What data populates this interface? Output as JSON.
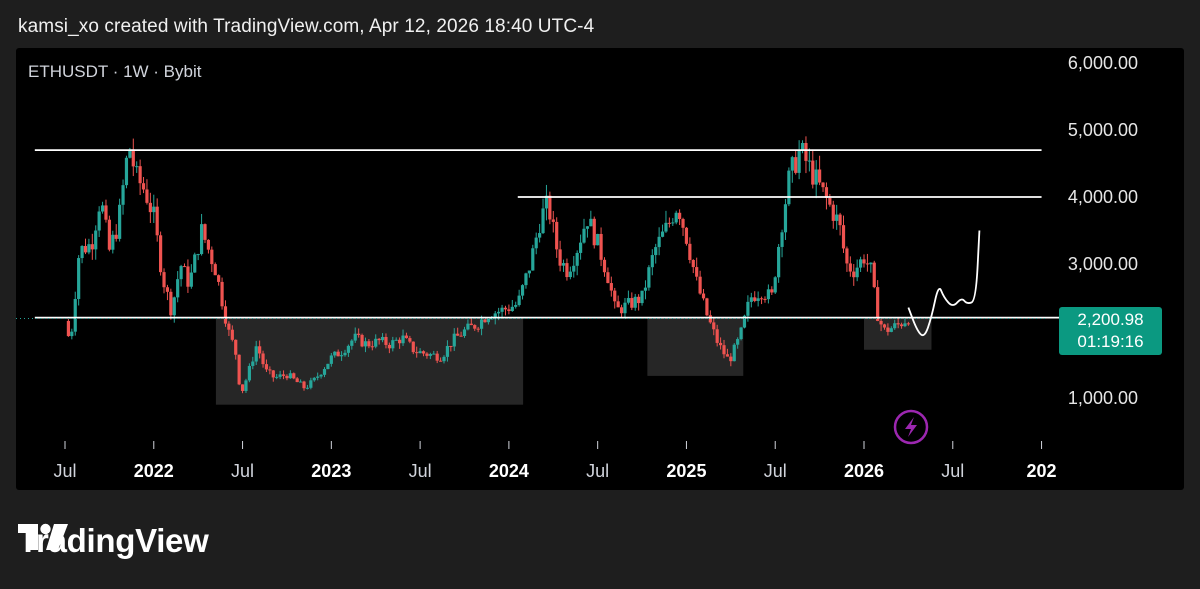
{
  "header": {
    "attribution": "kamsi_xo created with TradingView.com, Apr 12, 2026 18:40 UTC-4"
  },
  "symbol_line": "ETHUSDT · 1W · Bybit",
  "badge": {
    "price": "2,200.98",
    "countdown": "01:19:16"
  },
  "brand": {
    "name": "TradingView",
    "logo_icon": "tradingview-logo-icon"
  },
  "colors": {
    "up": "#26a69a",
    "down": "#ef5350",
    "background": "#000000",
    "price_badge": "#0b9981",
    "lightning_icon": "#9c27b0"
  },
  "chart_data": {
    "type": "candlestick",
    "symbol": "ETHUSDT",
    "interval": "1W",
    "exchange": "Bybit",
    "y_axis": {
      "ticks": [
        1000,
        2000,
        3000,
        4000,
        5000,
        6000
      ],
      "tick_labels": [
        "1,000.00",
        "2,000.00",
        "3,000.00",
        "4,000.00",
        "5,000.00",
        "6,000.00"
      ],
      "ylim": [
        500,
        6200
      ]
    },
    "x_axis": {
      "labels": [
        {
          "label": "Jul",
          "t": 2021.5,
          "bold": false
        },
        {
          "label": "2022",
          "t": 2022.0,
          "bold": true
        },
        {
          "label": "Jul",
          "t": 2022.5,
          "bold": false
        },
        {
          "label": "2023",
          "t": 2023.0,
          "bold": true
        },
        {
          "label": "Jul",
          "t": 2023.5,
          "bold": false
        },
        {
          "label": "2024",
          "t": 2024.0,
          "bold": true
        },
        {
          "label": "Jul",
          "t": 2024.5,
          "bold": false
        },
        {
          "label": "2025",
          "t": 2025.0,
          "bold": true
        },
        {
          "label": "Jul",
          "t": 2025.5,
          "bold": false
        },
        {
          "label": "2026",
          "t": 2026.0,
          "bold": true
        },
        {
          "label": "Jul",
          "t": 2026.5,
          "bold": false
        },
        {
          "label": "202",
          "t": 2027.0,
          "bold": true
        }
      ],
      "xlim": [
        2021.33,
        2027.1
      ]
    },
    "current_price": 2200.98,
    "price_path": [
      [
        2021.5,
        2150
      ],
      [
        2021.53,
        1800
      ],
      [
        2021.58,
        3200
      ],
      [
        2021.65,
        3300
      ],
      [
        2021.7,
        4000
      ],
      [
        2021.75,
        3200
      ],
      [
        2021.8,
        3600
      ],
      [
        2021.86,
        4800
      ],
      [
        2021.9,
        4300
      ],
      [
        2021.95,
        4100
      ],
      [
        2022.0,
        3700
      ],
      [
        2022.05,
        2800
      ],
      [
        2022.1,
        2300
      ],
      [
        2022.15,
        3000
      ],
      [
        2022.2,
        2700
      ],
      [
        2022.27,
        3500
      ],
      [
        2022.35,
        2900
      ],
      [
        2022.42,
        2000
      ],
      [
        2022.46,
        1700
      ],
      [
        2022.49,
        1050
      ],
      [
        2022.53,
        1350
      ],
      [
        2022.58,
        1800
      ],
      [
        2022.63,
        1400
      ],
      [
        2022.68,
        1300
      ],
      [
        2022.75,
        1350
      ],
      [
        2022.8,
        1250
      ],
      [
        2022.85,
        1150
      ],
      [
        2022.9,
        1250
      ],
      [
        2023.0,
        1600
      ],
      [
        2023.06,
        1700
      ],
      [
        2023.13,
        1900
      ],
      [
        2023.2,
        1800
      ],
      [
        2023.27,
        1850
      ],
      [
        2023.33,
        1800
      ],
      [
        2023.4,
        1900
      ],
      [
        2023.47,
        1700
      ],
      [
        2023.55,
        1650
      ],
      [
        2023.62,
        1620
      ],
      [
        2023.68,
        1850
      ],
      [
        2023.75,
        2000
      ],
      [
        2023.82,
        2100
      ],
      [
        2023.88,
        2250
      ],
      [
        2023.95,
        2300
      ],
      [
        2024.05,
        2400
      ],
      [
        2024.12,
        3000
      ],
      [
        2024.18,
        3700
      ],
      [
        2024.22,
        3900
      ],
      [
        2024.28,
        3100
      ],
      [
        2024.33,
        2900
      ],
      [
        2024.38,
        3200
      ],
      [
        2024.44,
        3700
      ],
      [
        2024.5,
        3300
      ],
      [
        2024.56,
        2800
      ],
      [
        2024.6,
        2300
      ],
      [
        2024.68,
        2400
      ],
      [
        2024.75,
        2500
      ],
      [
        2024.82,
        3200
      ],
      [
        2024.9,
        3600
      ],
      [
        2024.95,
        3900
      ],
      [
        2025.0,
        3400
      ],
      [
        2025.06,
        2700
      ],
      [
        2025.12,
        2200
      ],
      [
        2025.18,
        1800
      ],
      [
        2025.24,
        1550
      ],
      [
        2025.3,
        1900
      ],
      [
        2025.36,
        2500
      ],
      [
        2025.42,
        2600
      ],
      [
        2025.48,
        2500
      ],
      [
        2025.53,
        3500
      ],
      [
        2025.58,
        4300
      ],
      [
        2025.64,
        4700
      ],
      [
        2025.7,
        4400
      ],
      [
        2025.76,
        4100
      ],
      [
        2025.82,
        3800
      ],
      [
        2025.86,
        3600
      ],
      [
        2025.9,
        3000
      ],
      [
        2025.94,
        2900
      ],
      [
        2026.0,
        3100
      ],
      [
        2026.04,
        2900
      ],
      [
        2026.07,
        2300
      ],
      [
        2026.11,
        2000
      ],
      [
        2026.16,
        2050
      ],
      [
        2026.2,
        2100
      ],
      [
        2026.25,
        2200
      ]
    ],
    "horizontal_lines": [
      {
        "name": "resistance-high",
        "y": 4700,
        "from_t": 2021.33,
        "to_t": 2027.0
      },
      {
        "name": "resistance-mid",
        "y": 4000,
        "from_t": 2024.05,
        "to_t": 2027.0
      },
      {
        "name": "support",
        "y": 2200,
        "from_t": 2021.33,
        "to_t": 2027.1
      }
    ],
    "shaded_zones": [
      {
        "name": "accumulation-zone-1",
        "t0": 2022.35,
        "t1": 2024.08,
        "y0": 900,
        "y1": 2200
      },
      {
        "name": "accumulation-zone-2",
        "t0": 2024.78,
        "t1": 2025.32,
        "y0": 1330,
        "y1": 2200
      },
      {
        "name": "accumulation-zone-3",
        "t0": 2026.0,
        "t1": 2026.38,
        "y0": 1720,
        "y1": 2200
      }
    ],
    "projection": [
      [
        2026.25,
        2350
      ],
      [
        2026.3,
        2000
      ],
      [
        2026.34,
        1900
      ],
      [
        2026.38,
        2200
      ],
      [
        2026.42,
        2700
      ],
      [
        2026.45,
        2500
      ],
      [
        2026.5,
        2350
      ],
      [
        2026.55,
        2500
      ],
      [
        2026.58,
        2400
      ],
      [
        2026.63,
        2450
      ],
      [
        2026.65,
        3500
      ]
    ]
  }
}
